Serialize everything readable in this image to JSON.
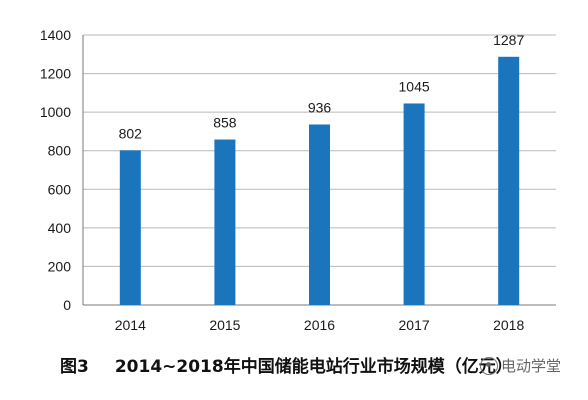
{
  "chart_data": {
    "type": "bar",
    "categories": [
      "2014",
      "2015",
      "2016",
      "2017",
      "2018"
    ],
    "values": [
      802,
      858,
      936,
      1045,
      1287
    ],
    "data_labels": [
      "802",
      "858",
      "936",
      "1045",
      "1287"
    ],
    "y_ticks": [
      "0",
      "200",
      "400",
      "600",
      "800",
      "1000",
      "1200",
      "1400"
    ],
    "ylim": [
      0,
      1400
    ],
    "grid": true,
    "legend": "none",
    "bar_color": "#1a75bc"
  },
  "caption": {
    "figure_number": "图3",
    "title": "2014~2018年中国储能电站行业市场规模（亿元）"
  },
  "watermark": {
    "icon": "wechat-icon",
    "text": "电动学堂"
  }
}
